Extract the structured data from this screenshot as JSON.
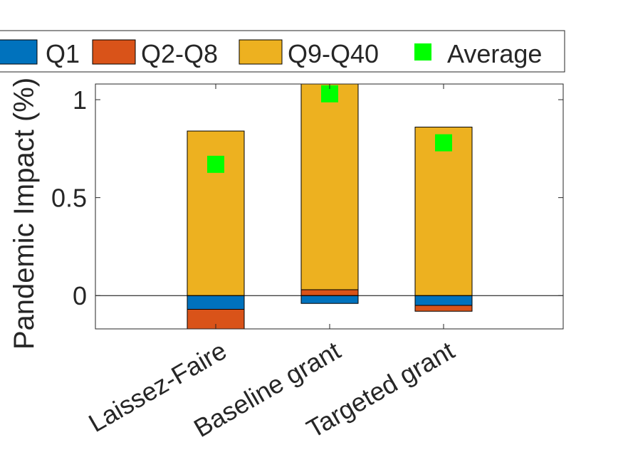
{
  "chart_data": {
    "type": "bar",
    "stacked": true,
    "ylabel": "Pandemic Impact (%)",
    "categories": [
      "Laissez-Faire",
      "Baseline grant",
      "Targeted grant"
    ],
    "ylim": [
      -0.17,
      1.08
    ],
    "yticks": [
      0,
      0.5,
      1
    ],
    "ytick_labels": [
      "0",
      "0.5",
      "1"
    ],
    "grid": false,
    "legend_position": "top",
    "series": [
      {
        "name": "Q1",
        "color": "#0072BD",
        "values": [
          -0.07,
          -0.04,
          -0.05
        ]
      },
      {
        "name": "Q2-Q8",
        "color": "#D95319",
        "values": [
          -0.1,
          0.03,
          -0.03
        ]
      },
      {
        "name": "Q9-Q40",
        "color": "#EDB120",
        "values": [
          0.84,
          1.08,
          0.86
        ]
      }
    ],
    "markers": {
      "name": "Average",
      "color": "#00FF00",
      "values": [
        0.67,
        1.03,
        0.78
      ]
    }
  }
}
